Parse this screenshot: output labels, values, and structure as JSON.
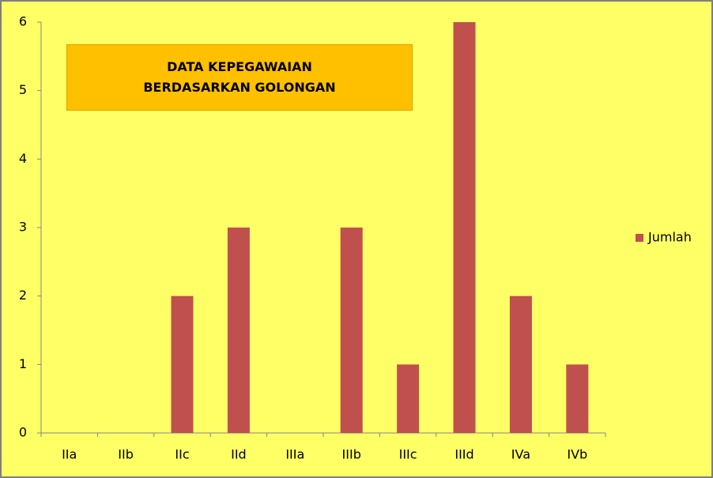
{
  "chart_data": {
    "type": "bar",
    "title": "DATA KEPEGAWAIAN BERDASARKAN GOLONGAN",
    "categories": [
      "IIa",
      "IIb",
      "IIc",
      "IId",
      "IIIa",
      "IIIb",
      "IIIc",
      "IIId",
      "IVa",
      "IVb"
    ],
    "series": [
      {
        "name": "Jumlah",
        "color": "#c0504d",
        "values": [
          0,
          0,
          2,
          3,
          0,
          3,
          1,
          6,
          2,
          1
        ]
      }
    ],
    "ylim": [
      0,
      6
    ],
    "yticks": [
      0,
      1,
      2,
      3,
      4,
      5,
      6
    ],
    "grid": false,
    "legend": "right"
  }
}
